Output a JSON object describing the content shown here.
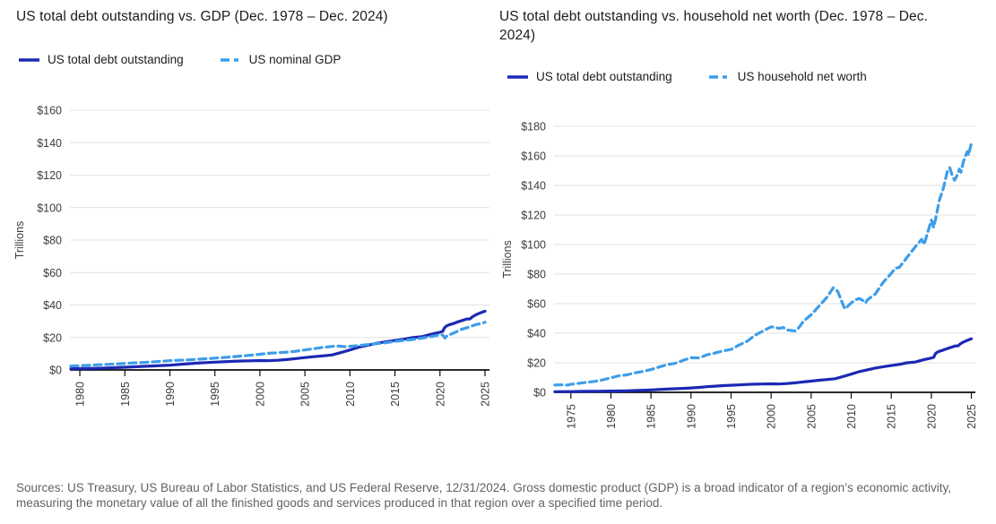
{
  "colors": {
    "navy": "#1b29b3",
    "light_blue": "#3d9de9",
    "grid": "#e2e2e2",
    "axis": "#0d0d0d",
    "tick_text": "#3c3c3c",
    "footer_text": "#5f6368"
  },
  "footer": {
    "text": "Sources: US Treasury, US Bureau of Labor Statistics, and US Federal Reserve, 12/31/2024. Gross domestic product (GDP) is a broad indicator of a region’s economic activity, measuring the monetary value of all the finished goods and services produced in that region over a specified time period."
  },
  "chart_data": [
    {
      "type": "line",
      "title": "US total debt outstanding vs. GDP (Dec. 1978 – Dec. 2024)",
      "ylabel": "Trillions",
      "unit": "USD trillions",
      "grid": true,
      "legend_position": "top-left",
      "xlim": [
        1978.9,
        2025.5
      ],
      "ylim": [
        0,
        160
      ],
      "yticks": [
        0,
        20,
        40,
        60,
        80,
        100,
        120,
        140,
        160
      ],
      "ytick_prefix": "$",
      "xticks": [
        1980,
        1985,
        1990,
        1995,
        2000,
        2005,
        2010,
        2015,
        2020,
        2025
      ],
      "series": [
        {
          "name": "US total debt outstanding",
          "dash": "solid",
          "color_key": "navy",
          "points": [
            [
              1979,
              0.79
            ],
            [
              1980,
              0.85
            ],
            [
              1981,
              0.93
            ],
            [
              1982,
              1.03
            ],
            [
              1983,
              1.2
            ],
            [
              1984,
              1.41
            ],
            [
              1985,
              1.66
            ],
            [
              1986,
              1.95
            ],
            [
              1987,
              2.21
            ],
            [
              1988,
              2.43
            ],
            [
              1989,
              2.68
            ],
            [
              1990,
              2.95
            ],
            [
              1991,
              3.36
            ],
            [
              1992,
              3.8
            ],
            [
              1993,
              4.17
            ],
            [
              1994,
              4.54
            ],
            [
              1995,
              4.8
            ],
            [
              1996,
              5.02
            ],
            [
              1997,
              5.32
            ],
            [
              1998,
              5.5
            ],
            [
              1999,
              5.61
            ],
            [
              2000,
              5.78
            ],
            [
              2001,
              5.66
            ],
            [
              2002,
              5.94
            ],
            [
              2003,
              6.4
            ],
            [
              2004,
              7.0
            ],
            [
              2005,
              7.6
            ],
            [
              2006,
              8.17
            ],
            [
              2007,
              8.68
            ],
            [
              2008,
              9.23
            ],
            [
              2009,
              10.7
            ],
            [
              2010,
              12.31
            ],
            [
              2011,
              14.03
            ],
            [
              2012,
              15.22
            ],
            [
              2013,
              16.43
            ],
            [
              2014,
              17.35
            ],
            [
              2015,
              18.14
            ],
            [
              2016,
              18.92
            ],
            [
              2017,
              19.98
            ],
            [
              2018,
              20.49
            ],
            [
              2019,
              21.97
            ],
            [
              2020,
              23.2
            ],
            [
              2020.3,
              23.7
            ],
            [
              2020.5,
              26.0
            ],
            [
              2020.7,
              27.0
            ],
            [
              2021,
              27.75
            ],
            [
              2021.5,
              28.6
            ],
            [
              2022,
              29.62
            ],
            [
              2022.5,
              30.5
            ],
            [
              2023,
              31.42
            ],
            [
              2023.35,
              31.46
            ],
            [
              2023.6,
              32.7
            ],
            [
              2024,
              34.0
            ],
            [
              2024.5,
              35.2
            ],
            [
              2025,
              36.2
            ]
          ]
        },
        {
          "name": "US nominal GDP",
          "dash": "dashed",
          "color_key": "light_blue",
          "points": [
            [
              1979,
              2.35
            ],
            [
              1980,
              2.63
            ],
            [
              1981,
              2.86
            ],
            [
              1982,
              3.21
            ],
            [
              1983,
              3.41
            ],
            [
              1984,
              3.64
            ],
            [
              1985,
              4.04
            ],
            [
              1986,
              4.35
            ],
            [
              1987,
              4.59
            ],
            [
              1988,
              4.91
            ],
            [
              1989,
              5.28
            ],
            [
              1990,
              5.66
            ],
            [
              1991,
              5.97
            ],
            [
              1992,
              6.17
            ],
            [
              1993,
              6.56
            ],
            [
              1994,
              6.88
            ],
            [
              1995,
              7.29
            ],
            [
              1996,
              7.66
            ],
            [
              1997,
              8.1
            ],
            [
              1998,
              8.6
            ],
            [
              1999,
              9.09
            ],
            [
              2000,
              9.66
            ],
            [
              2001,
              10.25
            ],
            [
              2002,
              10.6
            ],
            [
              2003,
              10.98
            ],
            [
              2004,
              11.51
            ],
            [
              2005,
              12.28
            ],
            [
              2006,
              13.1
            ],
            [
              2007,
              13.88
            ],
            [
              2008,
              14.48
            ],
            [
              2008.5,
              14.72
            ],
            [
              2009,
              14.55
            ],
            [
              2009.5,
              14.3
            ],
            [
              2010,
              14.54
            ],
            [
              2010.5,
              14.8
            ],
            [
              2011,
              15.06
            ],
            [
              2012,
              15.6
            ],
            [
              2013,
              16.2
            ],
            [
              2014,
              16.8
            ],
            [
              2015,
              17.6
            ],
            [
              2016,
              18.2
            ],
            [
              2017,
              18.75
            ],
            [
              2018,
              19.6
            ],
            [
              2019,
              20.5
            ],
            [
              2020,
              21.7
            ],
            [
              2020.3,
              21.5
            ],
            [
              2020.55,
              19.6
            ],
            [
              2020.8,
              21.2
            ],
            [
              2021,
              21.5
            ],
            [
              2021.5,
              22.7
            ],
            [
              2022,
              24.0
            ],
            [
              2022.5,
              25.2
            ],
            [
              2023,
              26.0
            ],
            [
              2023.5,
              27.0
            ],
            [
              2024,
              27.9
            ],
            [
              2024.5,
              28.6
            ],
            [
              2025,
              29.35
            ]
          ]
        }
      ]
    },
    {
      "type": "line",
      "title": "US total debt outstanding vs. household net worth (Dec. 1978 – Dec. 2024)",
      "ylabel": "Trillions",
      "unit": "USD trillions",
      "grid": true,
      "legend_position": "top-left",
      "xlim": [
        1972.9,
        2025.5
      ],
      "ylim": [
        0,
        180
      ],
      "yticks": [
        0,
        20,
        40,
        60,
        80,
        100,
        120,
        140,
        160,
        180
      ],
      "ytick_prefix": "$",
      "xticks": [
        1975,
        1980,
        1985,
        1990,
        1995,
        2000,
        2005,
        2010,
        2015,
        2020,
        2025
      ],
      "series": [
        {
          "name": "US total debt outstanding",
          "dash": "solid",
          "color_key": "navy",
          "points": [
            [
              1973,
              0.45
            ],
            [
              1974,
              0.47
            ],
            [
              1975,
              0.49
            ],
            [
              1976,
              0.58
            ],
            [
              1977,
              0.65
            ],
            [
              1978,
              0.72
            ],
            [
              1979,
              0.79
            ],
            [
              1980,
              0.85
            ],
            [
              1981,
              0.93
            ],
            [
              1982,
              1.03
            ],
            [
              1983,
              1.2
            ],
            [
              1984,
              1.41
            ],
            [
              1985,
              1.66
            ],
            [
              1986,
              1.95
            ],
            [
              1987,
              2.21
            ],
            [
              1988,
              2.43
            ],
            [
              1989,
              2.68
            ],
            [
              1990,
              2.95
            ],
            [
              1991,
              3.36
            ],
            [
              1992,
              3.8
            ],
            [
              1993,
              4.17
            ],
            [
              1994,
              4.54
            ],
            [
              1995,
              4.8
            ],
            [
              1996,
              5.02
            ],
            [
              1997,
              5.32
            ],
            [
              1998,
              5.5
            ],
            [
              1999,
              5.61
            ],
            [
              2000,
              5.78
            ],
            [
              2001,
              5.66
            ],
            [
              2002,
              5.94
            ],
            [
              2003,
              6.4
            ],
            [
              2004,
              7.0
            ],
            [
              2005,
              7.6
            ],
            [
              2006,
              8.17
            ],
            [
              2007,
              8.68
            ],
            [
              2008,
              9.23
            ],
            [
              2009,
              10.7
            ],
            [
              2010,
              12.31
            ],
            [
              2011,
              14.03
            ],
            [
              2012,
              15.22
            ],
            [
              2013,
              16.43
            ],
            [
              2014,
              17.35
            ],
            [
              2015,
              18.14
            ],
            [
              2016,
              18.92
            ],
            [
              2017,
              19.98
            ],
            [
              2018,
              20.49
            ],
            [
              2019,
              21.97
            ],
            [
              2020,
              23.2
            ],
            [
              2020.3,
              23.7
            ],
            [
              2020.5,
              26.0
            ],
            [
              2020.7,
              27.0
            ],
            [
              2021,
              27.75
            ],
            [
              2021.5,
              28.6
            ],
            [
              2022,
              29.62
            ],
            [
              2022.5,
              30.5
            ],
            [
              2023,
              31.42
            ],
            [
              2023.35,
              31.46
            ],
            [
              2023.6,
              32.7
            ],
            [
              2024,
              34.0
            ],
            [
              2024.5,
              35.2
            ],
            [
              2025,
              36.2
            ]
          ]
        },
        {
          "name": "US household net worth",
          "dash": "dashed",
          "color_key": "light_blue",
          "points": [
            [
              1973,
              5.0
            ],
            [
              1974,
              5.1
            ],
            [
              1974.6,
              4.9
            ],
            [
              1975,
              5.4
            ],
            [
              1976,
              6.1
            ],
            [
              1977,
              6.8
            ],
            [
              1978,
              7.4
            ],
            [
              1979,
              8.5
            ],
            [
              1980,
              9.8
            ],
            [
              1981,
              11.2
            ],
            [
              1982,
              11.8
            ],
            [
              1983,
              13.2
            ],
            [
              1984,
              14.1
            ],
            [
              1985,
              15.4
            ],
            [
              1986,
              17.1
            ],
            [
              1987,
              18.7
            ],
            [
              1988,
              19.6
            ],
            [
              1989,
              21.6
            ],
            [
              1990,
              23.4
            ],
            [
              1991,
              23.3
            ],
            [
              1992,
              25.4
            ],
            [
              1993,
              26.6
            ],
            [
              1994,
              28.0
            ],
            [
              1995,
              29.0
            ],
            [
              1996,
              32.0
            ],
            [
              1997,
              34.5
            ],
            [
              1998,
              38.7
            ],
            [
              1999,
              41.5
            ],
            [
              2000,
              44.3
            ],
            [
              2000.5,
              44.0
            ],
            [
              2001,
              43.2
            ],
            [
              2001.5,
              43.9
            ],
            [
              2002,
              42.2
            ],
            [
              2003,
              41.5
            ],
            [
              2003.5,
              44.0
            ],
            [
              2004,
              47.9
            ],
            [
              2005,
              52.5
            ],
            [
              2006,
              58.5
            ],
            [
              2007,
              64.5
            ],
            [
              2007.75,
              70.7
            ],
            [
              2008.3,
              68.5
            ],
            [
              2008.75,
              62.5
            ],
            [
              2009.1,
              57.6
            ],
            [
              2009.35,
              56.5
            ],
            [
              2009.6,
              58.5
            ],
            [
              2010,
              60.5
            ],
            [
              2010.5,
              62.5
            ],
            [
              2011,
              63.5
            ],
            [
              2011.5,
              62.0
            ],
            [
              2011.8,
              60.5
            ],
            [
              2012,
              62.5
            ],
            [
              2013,
              66.5
            ],
            [
              2014,
              74.5
            ],
            [
              2015,
              80.5
            ],
            [
              2015.5,
              84.0
            ],
            [
              2016,
              84.5
            ],
            [
              2016.5,
              88.0
            ],
            [
              2017,
              91.5
            ],
            [
              2018,
              98.5
            ],
            [
              2018.8,
              103.5
            ],
            [
              2019.1,
              100.0
            ],
            [
              2020,
              116.5
            ],
            [
              2020.3,
              111.5
            ],
            [
              2020.6,
              119.0
            ],
            [
              2021,
              130.0
            ],
            [
              2021.5,
              138.0
            ],
            [
              2022,
              149.5
            ],
            [
              2022.3,
              152.0
            ],
            [
              2022.6,
              147.0
            ],
            [
              2022.9,
              143.5
            ],
            [
              2023.2,
              146.5
            ],
            [
              2023.5,
              151.0
            ],
            [
              2023.7,
              149.0
            ],
            [
              2024,
              156.0
            ],
            [
              2024.3,
              160.5
            ],
            [
              2024.5,
              163.0
            ],
            [
              2024.65,
              160.5
            ],
            [
              2024.8,
              164.0
            ],
            [
              2025,
              168.5
            ]
          ]
        }
      ]
    }
  ]
}
